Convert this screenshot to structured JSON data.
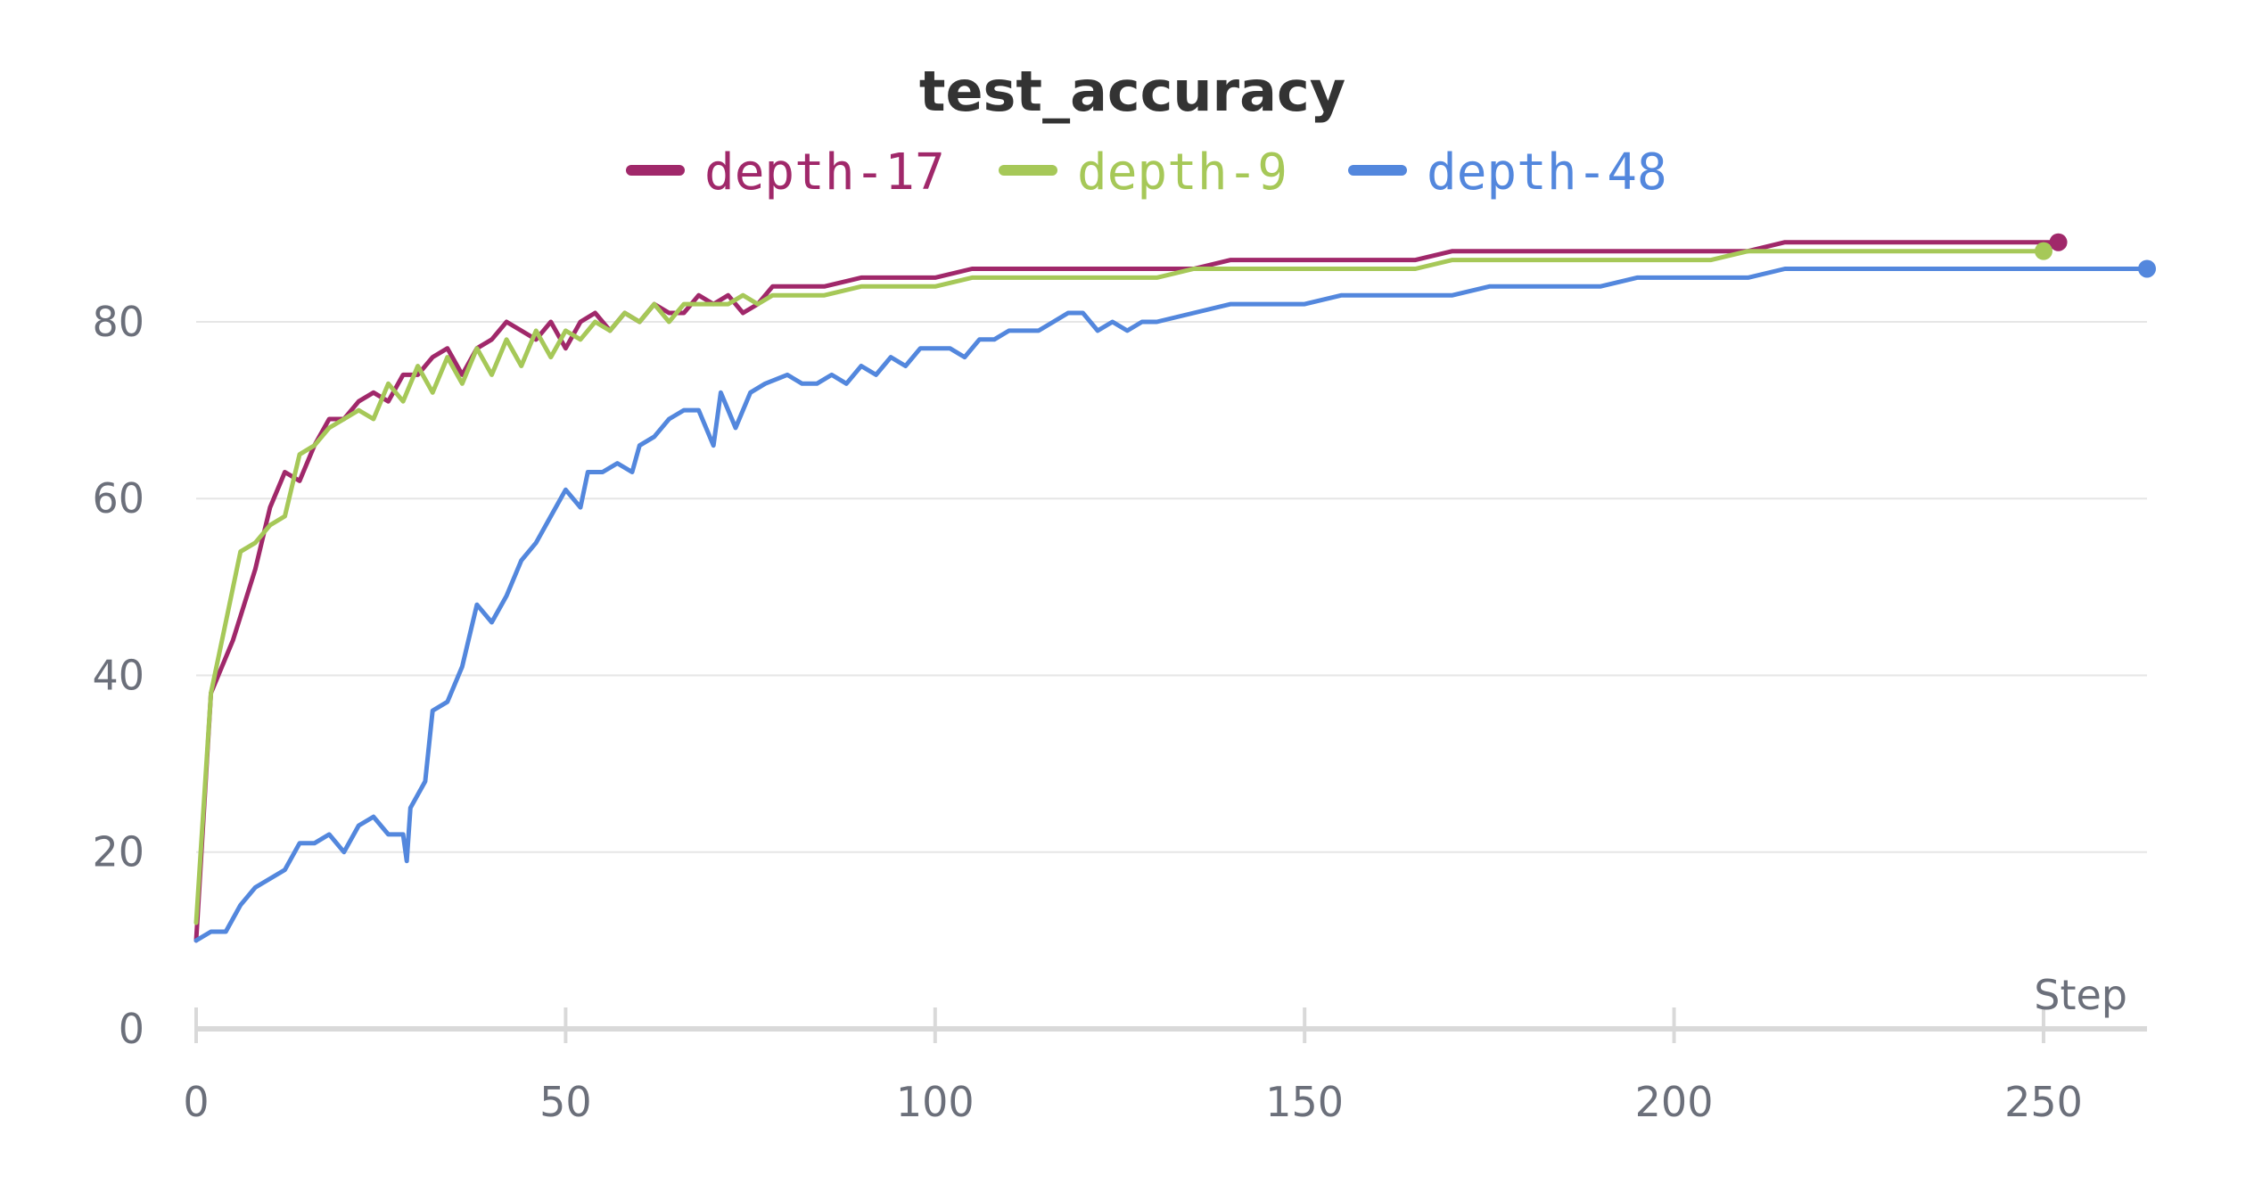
{
  "chart_data": {
    "type": "line",
    "title": "test_accuracy",
    "xlabel": "Step",
    "ylabel": "",
    "xlim": [
      0,
      264
    ],
    "ylim": [
      0,
      92
    ],
    "xticks": [
      0,
      50,
      100,
      150,
      200,
      250
    ],
    "yticks": [
      0,
      20,
      40,
      60,
      80
    ],
    "grid": true,
    "legend_position": "top-center",
    "series": [
      {
        "name": "depth-17",
        "color": "#a0286a",
        "points": [
          [
            0,
            10
          ],
          [
            2,
            38
          ],
          [
            5,
            44
          ],
          [
            8,
            52
          ],
          [
            10,
            59
          ],
          [
            12,
            63
          ],
          [
            14,
            62
          ],
          [
            16,
            66
          ],
          [
            18,
            69
          ],
          [
            20,
            69
          ],
          [
            22,
            71
          ],
          [
            24,
            72
          ],
          [
            26,
            71
          ],
          [
            28,
            74
          ],
          [
            30,
            74
          ],
          [
            32,
            76
          ],
          [
            34,
            77
          ],
          [
            36,
            74
          ],
          [
            38,
            77
          ],
          [
            40,
            78
          ],
          [
            42,
            80
          ],
          [
            44,
            79
          ],
          [
            46,
            78
          ],
          [
            48,
            80
          ],
          [
            50,
            77
          ],
          [
            52,
            80
          ],
          [
            54,
            81
          ],
          [
            56,
            79
          ],
          [
            58,
            81
          ],
          [
            60,
            80
          ],
          [
            62,
            82
          ],
          [
            64,
            81
          ],
          [
            66,
            81
          ],
          [
            68,
            83
          ],
          [
            70,
            82
          ],
          [
            72,
            83
          ],
          [
            74,
            81
          ],
          [
            76,
            82
          ],
          [
            78,
            84
          ],
          [
            80,
            84
          ],
          [
            85,
            84
          ],
          [
            90,
            85
          ],
          [
            95,
            85
          ],
          [
            100,
            85
          ],
          [
            105,
            86
          ],
          [
            110,
            86
          ],
          [
            115,
            86
          ],
          [
            120,
            86
          ],
          [
            125,
            86
          ],
          [
            130,
            86
          ],
          [
            135,
            86
          ],
          [
            140,
            87
          ],
          [
            145,
            87
          ],
          [
            150,
            87
          ],
          [
            155,
            87
          ],
          [
            160,
            87
          ],
          [
            165,
            87
          ],
          [
            170,
            88
          ],
          [
            175,
            88
          ],
          [
            180,
            88
          ],
          [
            185,
            88
          ],
          [
            190,
            88
          ],
          [
            195,
            88
          ],
          [
            200,
            88
          ],
          [
            205,
            88
          ],
          [
            210,
            88
          ],
          [
            215,
            89
          ],
          [
            220,
            89
          ],
          [
            225,
            89
          ],
          [
            230,
            89
          ],
          [
            235,
            89
          ],
          [
            240,
            89
          ],
          [
            245,
            89
          ],
          [
            250,
            89
          ],
          [
            252,
            89
          ]
        ]
      },
      {
        "name": "depth-9",
        "color": "#a6c858",
        "points": [
          [
            0,
            12
          ],
          [
            2,
            38
          ],
          [
            4,
            46
          ],
          [
            6,
            54
          ],
          [
            8,
            55
          ],
          [
            10,
            57
          ],
          [
            12,
            58
          ],
          [
            14,
            65
          ],
          [
            16,
            66
          ],
          [
            18,
            68
          ],
          [
            20,
            69
          ],
          [
            22,
            70
          ],
          [
            24,
            69
          ],
          [
            26,
            73
          ],
          [
            28,
            71
          ],
          [
            30,
            75
          ],
          [
            32,
            72
          ],
          [
            34,
            76
          ],
          [
            36,
            73
          ],
          [
            38,
            77
          ],
          [
            40,
            74
          ],
          [
            42,
            78
          ],
          [
            44,
            75
          ],
          [
            46,
            79
          ],
          [
            48,
            76
          ],
          [
            50,
            79
          ],
          [
            52,
            78
          ],
          [
            54,
            80
          ],
          [
            56,
            79
          ],
          [
            58,
            81
          ],
          [
            60,
            80
          ],
          [
            62,
            82
          ],
          [
            64,
            80
          ],
          [
            66,
            82
          ],
          [
            68,
            82
          ],
          [
            70,
            82
          ],
          [
            72,
            82
          ],
          [
            74,
            83
          ],
          [
            76,
            82
          ],
          [
            78,
            83
          ],
          [
            80,
            83
          ],
          [
            85,
            83
          ],
          [
            90,
            84
          ],
          [
            95,
            84
          ],
          [
            100,
            84
          ],
          [
            105,
            85
          ],
          [
            110,
            85
          ],
          [
            115,
            85
          ],
          [
            120,
            85
          ],
          [
            125,
            85
          ],
          [
            130,
            85
          ],
          [
            135,
            86
          ],
          [
            140,
            86
          ],
          [
            145,
            86
          ],
          [
            150,
            86
          ],
          [
            155,
            86
          ],
          [
            160,
            86
          ],
          [
            165,
            86
          ],
          [
            170,
            87
          ],
          [
            175,
            87
          ],
          [
            180,
            87
          ],
          [
            185,
            87
          ],
          [
            190,
            87
          ],
          [
            195,
            87
          ],
          [
            200,
            87
          ],
          [
            205,
            87
          ],
          [
            210,
            88
          ],
          [
            215,
            88
          ],
          [
            220,
            88
          ],
          [
            225,
            88
          ],
          [
            230,
            88
          ],
          [
            235,
            88
          ],
          [
            240,
            88
          ],
          [
            245,
            88
          ],
          [
            250,
            88
          ]
        ]
      },
      {
        "name": "depth-48",
        "color": "#5387dd",
        "points": [
          [
            0,
            10
          ],
          [
            2,
            11
          ],
          [
            4,
            11
          ],
          [
            6,
            14
          ],
          [
            8,
            16
          ],
          [
            10,
            17
          ],
          [
            12,
            18
          ],
          [
            14,
            21
          ],
          [
            16,
            21
          ],
          [
            18,
            22
          ],
          [
            20,
            20
          ],
          [
            22,
            23
          ],
          [
            24,
            24
          ],
          [
            26,
            22
          ],
          [
            28,
            22
          ],
          [
            28.5,
            19
          ],
          [
            29,
            25
          ],
          [
            31,
            28
          ],
          [
            32,
            36
          ],
          [
            34,
            37
          ],
          [
            36,
            41
          ],
          [
            38,
            48
          ],
          [
            40,
            46
          ],
          [
            42,
            49
          ],
          [
            44,
            53
          ],
          [
            46,
            55
          ],
          [
            48,
            58
          ],
          [
            50,
            61
          ],
          [
            52,
            59
          ],
          [
            53,
            63
          ],
          [
            55,
            63
          ],
          [
            57,
            64
          ],
          [
            59,
            63
          ],
          [
            60,
            66
          ],
          [
            62,
            67
          ],
          [
            64,
            69
          ],
          [
            66,
            70
          ],
          [
            68,
            70
          ],
          [
            70,
            66
          ],
          [
            71,
            72
          ],
          [
            73,
            68
          ],
          [
            75,
            72
          ],
          [
            77,
            73
          ],
          [
            80,
            74
          ],
          [
            82,
            73
          ],
          [
            84,
            73
          ],
          [
            86,
            74
          ],
          [
            88,
            73
          ],
          [
            90,
            75
          ],
          [
            92,
            74
          ],
          [
            94,
            76
          ],
          [
            96,
            75
          ],
          [
            98,
            77
          ],
          [
            100,
            77
          ],
          [
            102,
            77
          ],
          [
            104,
            76
          ],
          [
            106,
            78
          ],
          [
            108,
            78
          ],
          [
            110,
            79
          ],
          [
            112,
            79
          ],
          [
            114,
            79
          ],
          [
            116,
            80
          ],
          [
            118,
            81
          ],
          [
            120,
            81
          ],
          [
            122,
            79
          ],
          [
            124,
            80
          ],
          [
            126,
            79
          ],
          [
            128,
            80
          ],
          [
            130,
            80
          ],
          [
            135,
            81
          ],
          [
            140,
            82
          ],
          [
            145,
            82
          ],
          [
            150,
            82
          ],
          [
            155,
            83
          ],
          [
            160,
            83
          ],
          [
            165,
            83
          ],
          [
            170,
            83
          ],
          [
            175,
            84
          ],
          [
            180,
            84
          ],
          [
            185,
            84
          ],
          [
            190,
            84
          ],
          [
            195,
            85
          ],
          [
            200,
            85
          ],
          [
            205,
            85
          ],
          [
            210,
            85
          ],
          [
            215,
            86
          ],
          [
            220,
            86
          ],
          [
            225,
            86
          ],
          [
            230,
            86
          ],
          [
            235,
            86
          ],
          [
            240,
            86
          ],
          [
            245,
            86
          ],
          [
            250,
            86
          ],
          [
            255,
            86
          ],
          [
            260,
            86
          ],
          [
            264,
            86
          ]
        ]
      }
    ]
  }
}
